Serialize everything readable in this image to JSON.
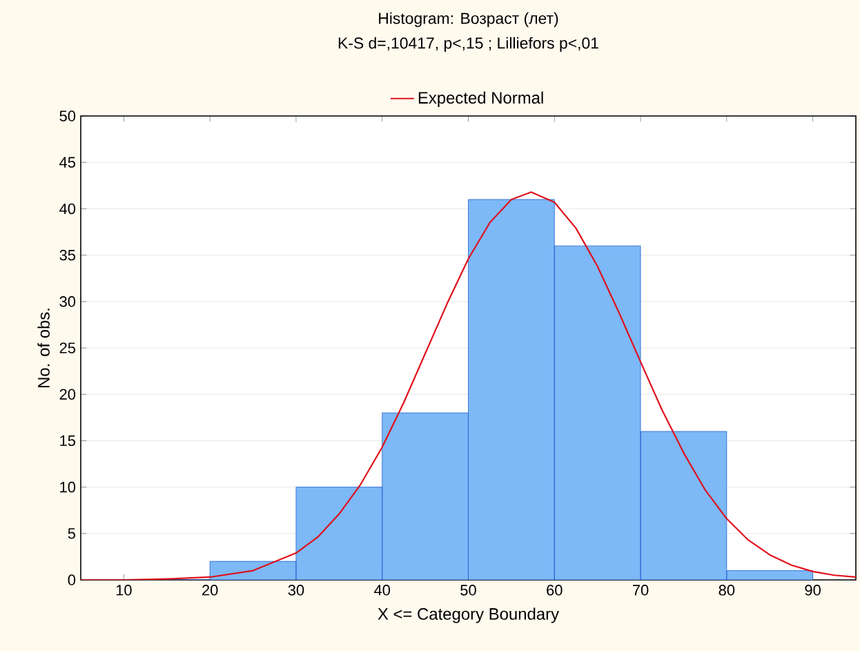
{
  "chart_data": {
    "type": "histogram",
    "title": "Histogram: Возраст (лет)",
    "subtitle": "K-S d=,10417, p<,15 ; Lilliefors p<,01",
    "xlabel": "X <= Category Boundary",
    "ylabel": "No. of obs.",
    "bins": [
      10,
      20,
      30,
      40,
      50,
      60,
      70,
      80,
      90
    ],
    "values": [
      0,
      2,
      10,
      18,
      41,
      36,
      16,
      1
    ],
    "color": "#7db8f7",
    "series": [
      {
        "name": "Expected Normal",
        "type": "line",
        "color": "#e0101b",
        "x": [
          5,
          10,
          15,
          20,
          25,
          30,
          32.5,
          35,
          37.5,
          40,
          42.5,
          45,
          47.5,
          50,
          52.5,
          55,
          57.3,
          60,
          62.5,
          65,
          67.5,
          70,
          72.5,
          75,
          77.5,
          80,
          82.5,
          85,
          87.5,
          90,
          92.5,
          95
        ],
        "values": [
          0,
          0,
          0.1,
          0.3,
          1,
          2.9,
          4.6,
          7.1,
          10.3,
          14.3,
          19.1,
          24.4,
          29.7,
          34.6,
          38.5,
          41,
          41.8,
          40.7,
          37.9,
          33.8,
          28.8,
          23.5,
          18.3,
          13.7,
          9.7,
          6.6,
          4.3,
          2.7,
          1.6,
          0.9,
          0.5,
          0.3
        ]
      }
    ],
    "xlim": [
      5,
      95
    ],
    "ylim": [
      0,
      50
    ],
    "xticks": [
      10,
      20,
      30,
      40,
      50,
      60,
      70,
      80,
      90
    ],
    "yticks": [
      0,
      5,
      10,
      15,
      20,
      25,
      30,
      35,
      40,
      45,
      50
    ],
    "grid": "y",
    "legend": "top"
  }
}
